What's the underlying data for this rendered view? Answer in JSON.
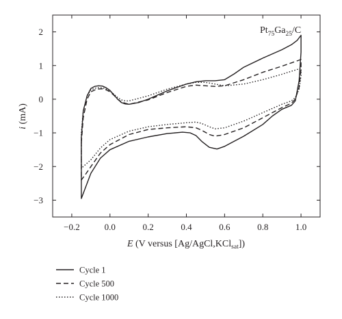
{
  "chart_data": {
    "type": "line",
    "chart_kind": "cyclic voltammogram",
    "annotation": {
      "base": "Pt",
      "sub1": "75",
      "mid": "Ga",
      "sub2": "25",
      "tail": "/C"
    },
    "xlabel": {
      "italic": "E",
      "text": " (V versus [Ag/AgCl,KCl",
      "sub": "sat",
      "close": "])"
    },
    "ylabel": {
      "italic": "i",
      "text": " (mA)"
    },
    "xlim": [
      -0.3,
      1.1
    ],
    "ylim": [
      -3.5,
      2.5
    ],
    "xticks": [
      -0.2,
      0.0,
      0.2,
      0.4,
      0.6,
      0.8,
      1.0
    ],
    "xtick_labels": [
      "−0.2",
      "0.0",
      "0.2",
      "0.4",
      "0.6",
      "0.8",
      "1.0"
    ],
    "yticks": [
      -3,
      -2,
      -1,
      0,
      1,
      2
    ],
    "ytick_labels": [
      "−3",
      "−2",
      "−1",
      "0",
      "1",
      "2"
    ],
    "grid": false,
    "legend_position": "below",
    "series": [
      {
        "name": "Cycle 1",
        "style": "solid",
        "color": "#231f20",
        "x": [
          -0.15,
          -0.14,
          -0.12,
          -0.1,
          -0.08,
          -0.06,
          -0.04,
          -0.02,
          0.0,
          0.02,
          0.04,
          0.06,
          0.08,
          0.1,
          0.15,
          0.2,
          0.3,
          0.4,
          0.45,
          0.5,
          0.55,
          0.6,
          0.65,
          0.7,
          0.8,
          0.9,
          0.95,
          0.98,
          1.0,
          1.0,
          0.99,
          0.97,
          0.95,
          0.9,
          0.85,
          0.8,
          0.7,
          0.65,
          0.6,
          0.56,
          0.52,
          0.48,
          0.45,
          0.42,
          0.38,
          0.3,
          0.2,
          0.1,
          0.0,
          -0.05,
          -0.1,
          -0.13,
          -0.15
        ],
        "y": [
          -1.15,
          -0.35,
          0.1,
          0.32,
          0.38,
          0.4,
          0.39,
          0.34,
          0.26,
          0.13,
          0.0,
          -0.1,
          -0.14,
          -0.15,
          -0.1,
          0.0,
          0.25,
          0.45,
          0.52,
          0.55,
          0.55,
          0.58,
          0.75,
          0.95,
          1.22,
          1.47,
          1.62,
          1.75,
          1.9,
          1.4,
          0.55,
          -0.05,
          -0.18,
          -0.3,
          -0.5,
          -0.75,
          -1.1,
          -1.25,
          -1.4,
          -1.48,
          -1.43,
          -1.25,
          -1.08,
          -1.0,
          -0.98,
          -1.02,
          -1.12,
          -1.25,
          -1.5,
          -1.75,
          -2.2,
          -2.65,
          -2.95
        ]
      },
      {
        "name": "Cycle 500",
        "style": "dashed",
        "color": "#231f20",
        "x": [
          -0.15,
          -0.14,
          -0.12,
          -0.1,
          -0.07,
          -0.04,
          -0.02,
          0.0,
          0.02,
          0.04,
          0.06,
          0.08,
          0.1,
          0.2,
          0.3,
          0.4,
          0.45,
          0.5,
          0.55,
          0.6,
          0.7,
          0.8,
          0.9,
          0.95,
          1.0,
          1.0,
          0.99,
          0.97,
          0.95,
          0.9,
          0.8,
          0.7,
          0.6,
          0.55,
          0.52,
          0.48,
          0.45,
          0.4,
          0.3,
          0.2,
          0.1,
          0.0,
          -0.05,
          -0.1,
          -0.13,
          -0.15
        ],
        "y": [
          -1.3,
          -0.55,
          0.0,
          0.22,
          0.3,
          0.31,
          0.28,
          0.22,
          0.12,
          0.0,
          -0.08,
          -0.12,
          -0.15,
          -0.02,
          0.2,
          0.38,
          0.42,
          0.4,
          0.38,
          0.4,
          0.58,
          0.8,
          0.98,
          1.08,
          1.18,
          0.9,
          0.35,
          0.0,
          -0.12,
          -0.25,
          -0.55,
          -0.85,
          -1.05,
          -1.1,
          -1.05,
          -0.92,
          -0.85,
          -0.82,
          -0.85,
          -0.9,
          -1.05,
          -1.35,
          -1.6,
          -2.0,
          -2.25,
          -2.4
        ]
      },
      {
        "name": "Cycle 1000",
        "style": "dotted",
        "color": "#231f20",
        "x": [
          -0.15,
          -0.14,
          -0.12,
          -0.1,
          -0.07,
          -0.04,
          -0.02,
          0.0,
          0.02,
          0.04,
          0.06,
          0.08,
          0.1,
          0.2,
          0.3,
          0.4,
          0.45,
          0.5,
          0.55,
          0.6,
          0.7,
          0.8,
          0.9,
          0.95,
          1.0,
          1.0,
          0.99,
          0.97,
          0.95,
          0.9,
          0.8,
          0.7,
          0.6,
          0.55,
          0.52,
          0.48,
          0.45,
          0.4,
          0.3,
          0.2,
          0.1,
          0.0,
          -0.05,
          -0.1,
          -0.13,
          -0.15
        ],
        "y": [
          -1.0,
          -0.35,
          0.1,
          0.28,
          0.34,
          0.34,
          0.3,
          0.24,
          0.15,
          0.05,
          -0.02,
          -0.05,
          -0.05,
          0.1,
          0.3,
          0.45,
          0.5,
          0.5,
          0.45,
          0.4,
          0.45,
          0.58,
          0.74,
          0.83,
          0.92,
          0.7,
          0.3,
          0.05,
          -0.05,
          -0.15,
          -0.4,
          -0.65,
          -0.85,
          -0.88,
          -0.82,
          -0.72,
          -0.68,
          -0.7,
          -0.75,
          -0.82,
          -0.95,
          -1.2,
          -1.45,
          -1.8,
          -1.95,
          -2.05
        ]
      }
    ]
  }
}
